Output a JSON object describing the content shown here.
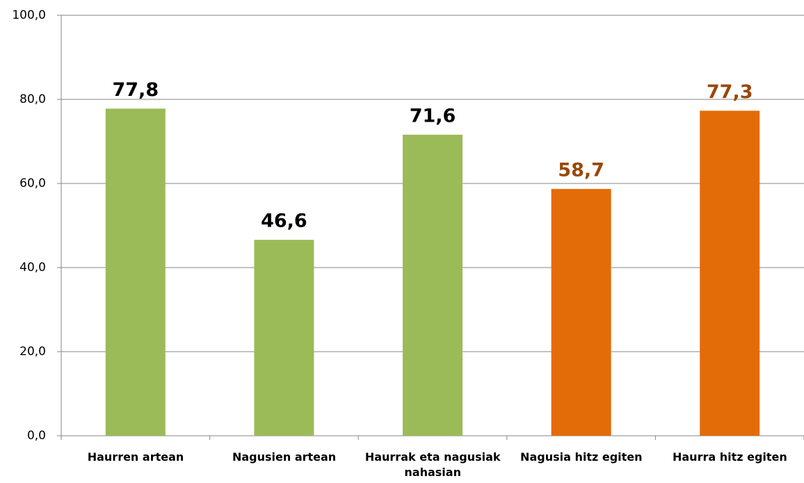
{
  "chart_data": {
    "type": "bar",
    "categories": [
      "Haurren artean",
      "Nagusien artean",
      "Haurrak eta nagusiak nahasian",
      "Nagusia hitz egiten",
      "Haurra hitz egiten"
    ],
    "values": [
      77.8,
      46.6,
      71.6,
      58.7,
      77.3
    ],
    "value_labels": [
      "77,8",
      "46,6",
      "71,6",
      "58,7",
      "77,3"
    ],
    "colors": [
      "#9bbb59",
      "#9bbb59",
      "#9bbb59",
      "#e36c09",
      "#e36c09"
    ],
    "label_colors": [
      "#000000",
      "#000000",
      "#000000",
      "#984807",
      "#984807"
    ],
    "ylim": [
      0,
      100
    ],
    "yticks": [
      {
        "value": 0,
        "label": "0,0"
      },
      {
        "value": 20,
        "label": "20,0"
      },
      {
        "value": 40,
        "label": "40,0"
      },
      {
        "value": 60,
        "label": "60,0"
      },
      {
        "value": 80,
        "label": "80,0"
      },
      {
        "value": 100,
        "label": "100,0"
      }
    ],
    "grid": true
  }
}
